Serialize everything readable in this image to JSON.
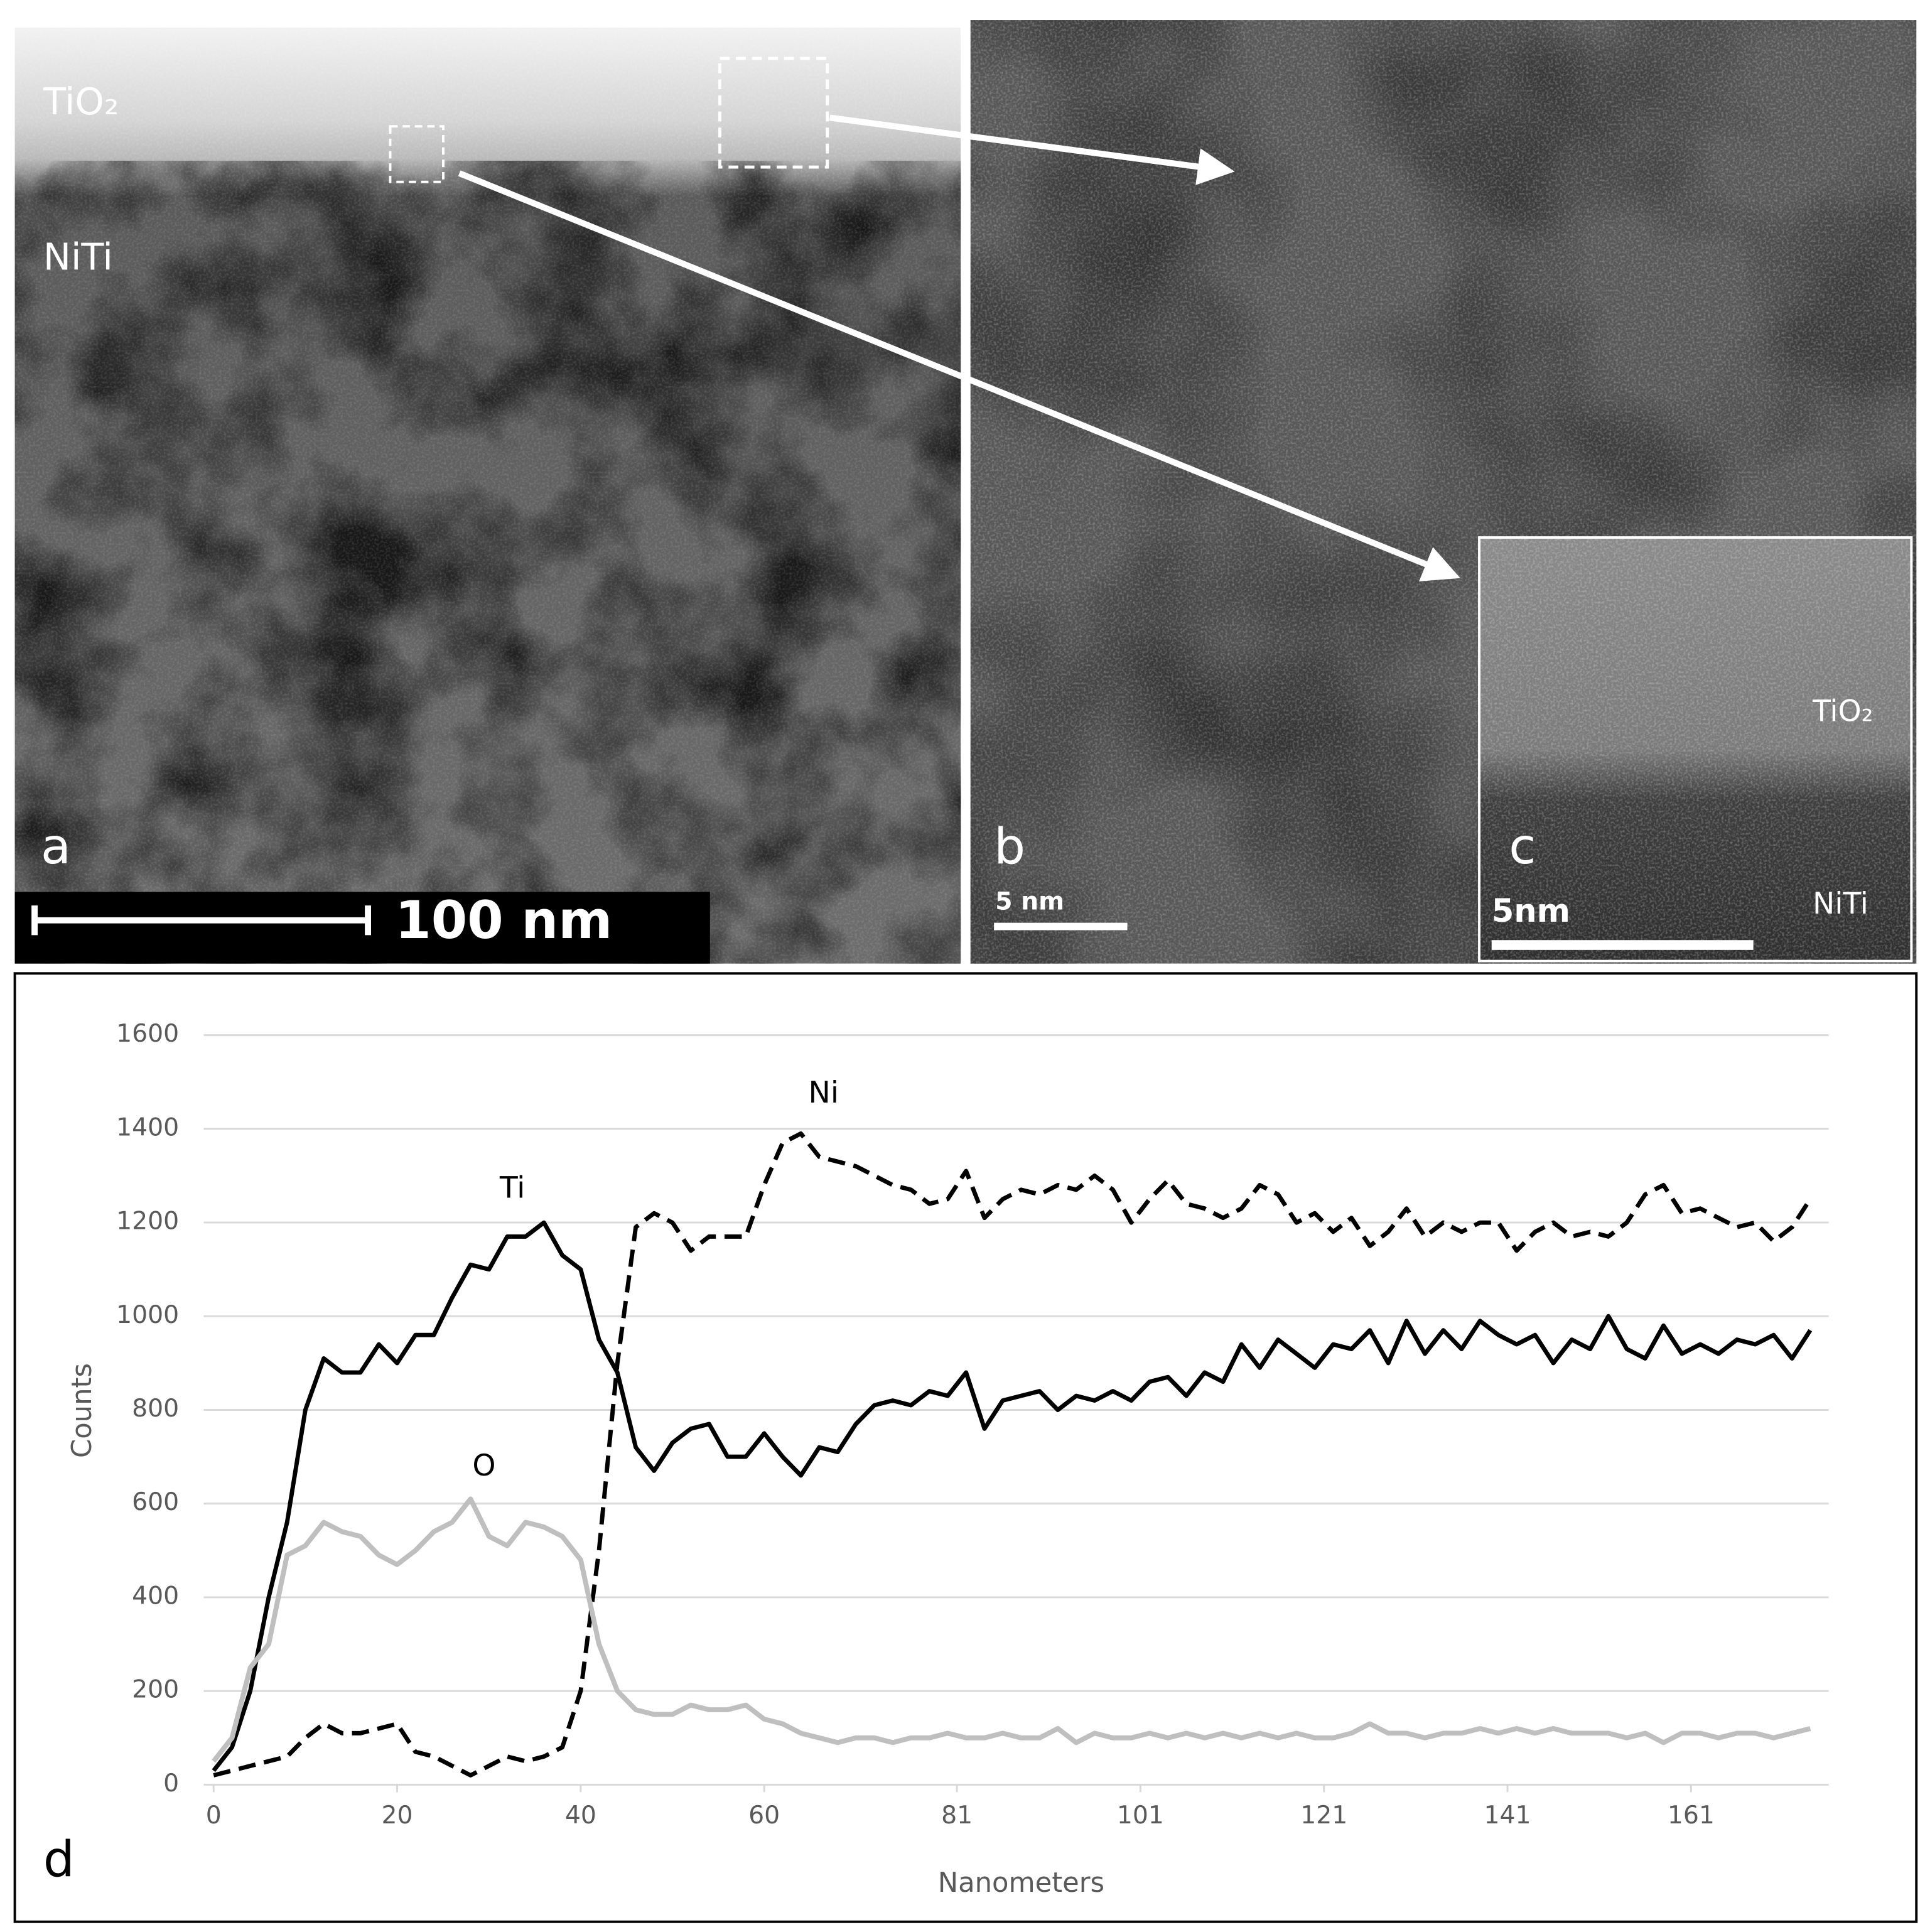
{
  "panels": {
    "a": {
      "label": "a",
      "layers": [
        "TiO₂",
        "NiTi"
      ],
      "scale_bar": "100 nm"
    },
    "b": {
      "label": "b",
      "scale_bar": "5 nm"
    },
    "c": {
      "label": "c",
      "layers": [
        "TiO₂",
        "NiTi"
      ],
      "scale_bar": "5nm"
    },
    "d": {
      "label": "d"
    }
  },
  "chart_data": {
    "type": "line",
    "x_label": "Nanometers",
    "y_label": "Counts",
    "x": [
      0,
      2,
      4,
      6,
      8,
      10,
      12,
      14,
      16,
      18,
      20,
      22,
      24,
      26,
      28,
      30,
      32,
      34,
      36,
      38,
      40,
      42,
      44,
      46,
      48,
      50,
      52,
      54,
      56,
      58,
      60,
      62,
      64,
      66,
      68,
      70,
      72,
      74,
      76,
      78,
      80,
      82,
      84,
      86,
      88,
      90,
      92,
      94,
      96,
      98,
      100,
      102,
      104,
      106,
      108,
      110,
      112,
      114,
      116,
      118,
      120,
      122,
      124,
      126,
      128,
      130,
      132,
      134,
      136,
      138,
      140,
      142,
      144,
      146,
      148,
      150,
      152,
      154,
      156,
      158,
      160,
      162,
      164,
      166,
      168,
      170,
      172,
      174
    ],
    "series": [
      {
        "name": "Ti",
        "color": "#000000",
        "linestyle": "solid",
        "values": [
          30,
          80,
          200,
          400,
          560,
          800,
          910,
          880,
          880,
          940,
          900,
          960,
          960,
          1040,
          1110,
          1100,
          1170,
          1170,
          1200,
          1130,
          1100,
          950,
          880,
          720,
          670,
          730,
          760,
          770,
          700,
          700,
          750,
          700,
          660,
          720,
          710,
          770,
          810,
          820,
          810,
          840,
          830,
          880,
          760,
          820,
          830,
          840,
          800,
          830,
          820,
          840,
          820,
          860,
          870,
          830,
          880,
          860,
          940,
          890,
          950,
          920,
          890,
          940,
          930,
          970,
          900,
          990,
          920,
          970,
          930,
          990,
          960,
          940,
          960,
          900,
          950,
          930,
          1000,
          930,
          910,
          980,
          920,
          940,
          920,
          950,
          940,
          960,
          910,
          970
        ]
      },
      {
        "name": "Ni",
        "color": "#000000",
        "linestyle": "dashed",
        "values": [
          20,
          30,
          40,
          50,
          60,
          100,
          130,
          110,
          110,
          120,
          130,
          70,
          60,
          40,
          20,
          40,
          60,
          50,
          60,
          80,
          200,
          500,
          900,
          1190,
          1220,
          1200,
          1140,
          1170,
          1170,
          1170,
          1280,
          1370,
          1390,
          1340,
          1330,
          1320,
          1300,
          1280,
          1270,
          1240,
          1250,
          1310,
          1210,
          1250,
          1270,
          1260,
          1280,
          1270,
          1300,
          1270,
          1200,
          1250,
          1290,
          1240,
          1230,
          1210,
          1230,
          1280,
          1260,
          1200,
          1220,
          1180,
          1210,
          1150,
          1180,
          1230,
          1170,
          1200,
          1180,
          1200,
          1200,
          1140,
          1180,
          1200,
          1170,
          1180,
          1170,
          1200,
          1260,
          1280,
          1220,
          1230,
          1210,
          1190,
          1200,
          1160,
          1190,
          1250
        ]
      },
      {
        "name": "O",
        "color": "#bfbfbf",
        "linestyle": "solid",
        "values": [
          50,
          100,
          250,
          300,
          490,
          510,
          560,
          540,
          530,
          490,
          470,
          500,
          540,
          560,
          610,
          530,
          510,
          560,
          550,
          530,
          480,
          300,
          200,
          160,
          150,
          150,
          170,
          160,
          160,
          170,
          140,
          130,
          110,
          100,
          90,
          100,
          100,
          90,
          100,
          100,
          110,
          100,
          100,
          110,
          100,
          100,
          120,
          90,
          110,
          100,
          100,
          110,
          100,
          110,
          100,
          110,
          100,
          110,
          100,
          110,
          100,
          100,
          110,
          130,
          110,
          110,
          100,
          110,
          110,
          120,
          110,
          120,
          110,
          120,
          110,
          110,
          110,
          100,
          110,
          90,
          110,
          110,
          100,
          110,
          110,
          100,
          110,
          120
        ]
      }
    ],
    "xlim": [
      0,
      176
    ],
    "ylim": [
      0,
      1600
    ],
    "xticks": [
      0,
      20,
      40,
      60,
      81,
      101,
      121,
      141,
      161
    ],
    "yticks": [
      0,
      200,
      400,
      600,
      800,
      1000,
      1200,
      1400,
      1600
    ],
    "grid": true
  }
}
